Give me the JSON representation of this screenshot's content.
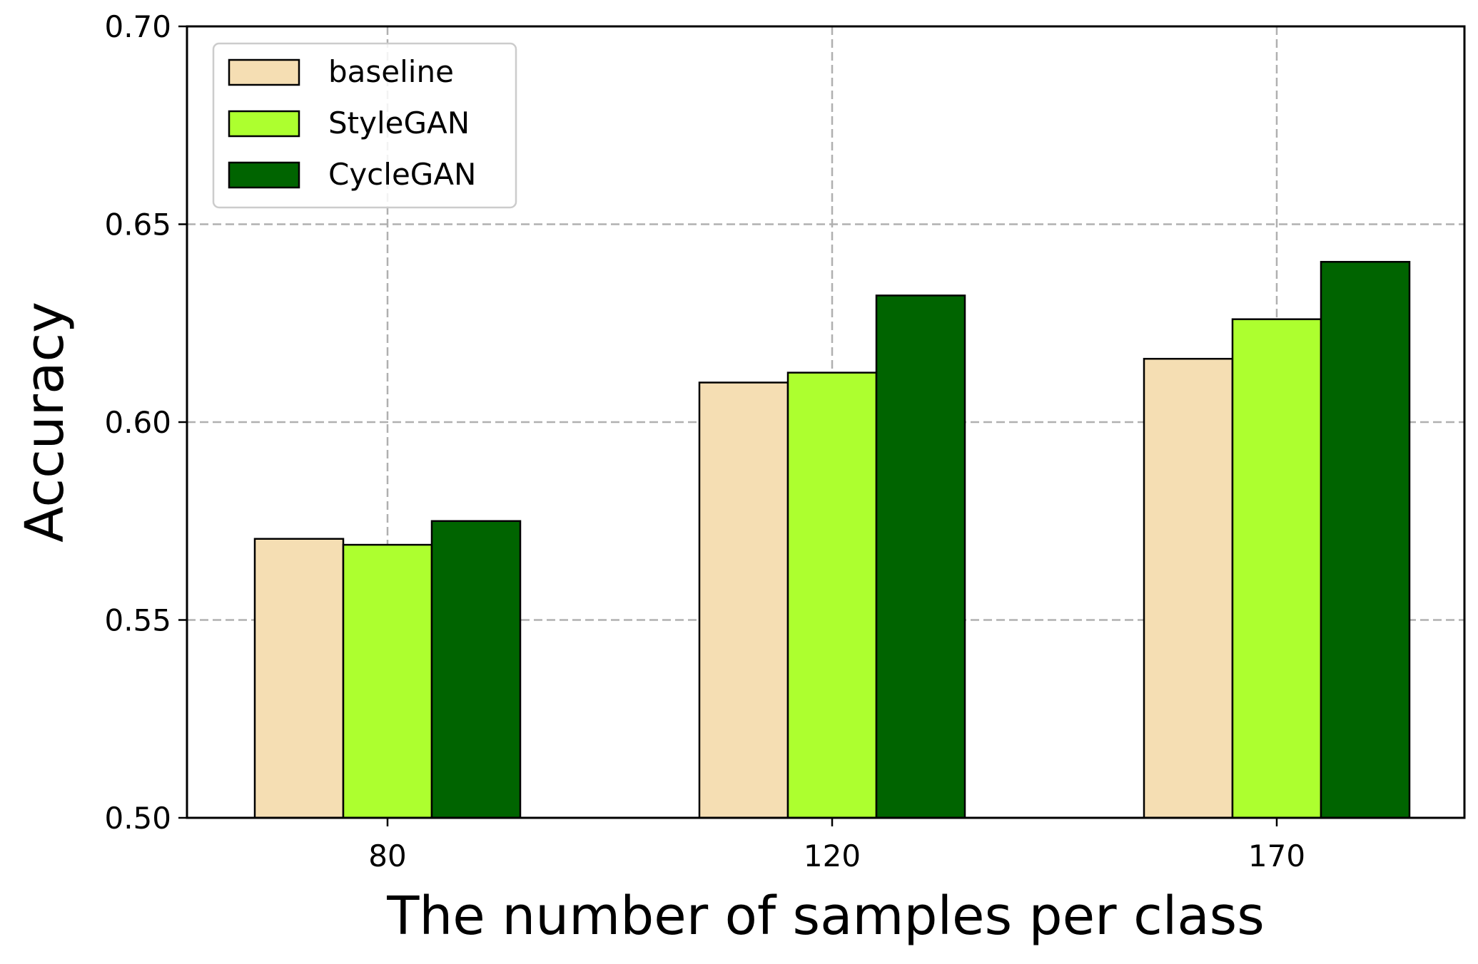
{
  "chart_data": {
    "type": "bar",
    "title": "",
    "xlabel": "The number of samples per class",
    "ylabel": "Accuracy",
    "categories": [
      "80",
      "120",
      "170"
    ],
    "series": [
      {
        "name": "baseline",
        "color": "#F5DEB3",
        "values": [
          0.5705,
          0.61,
          0.616
        ]
      },
      {
        "name": "StyleGAN",
        "color": "#ADFF2F",
        "values": [
          0.569,
          0.6125,
          0.626
        ]
      },
      {
        "name": "CycleGAN",
        "color": "#006400",
        "values": [
          0.575,
          0.632,
          0.6405
        ]
      }
    ],
    "ylim": [
      0.5,
      0.7
    ],
    "yticks": [
      "0.50",
      "0.55",
      "0.60",
      "0.65",
      "0.70"
    ],
    "grid": true,
    "legend_position": "top-left"
  }
}
